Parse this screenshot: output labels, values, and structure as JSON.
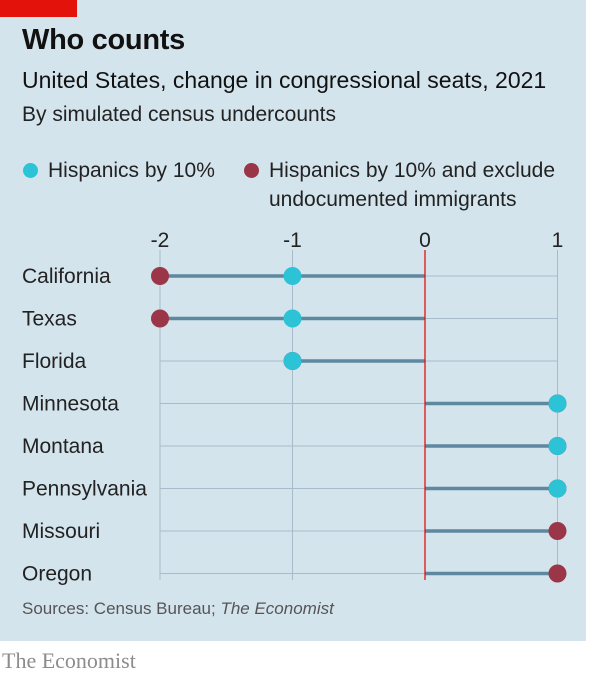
{
  "header": {
    "title": "Who counts",
    "subtitle": "United States, change in congressional seats, 2021",
    "subsubtitle": "By simulated census undercounts"
  },
  "legend": {
    "item1": "Hispanics by 10%",
    "item2_line1": "Hispanics by 10% and exclude",
    "item2_line2": "undocumented immigrants"
  },
  "footer": {
    "source_prefix": "Sources: Census Bureau; ",
    "source_italic": "The Economist",
    "brand": "The Economist"
  },
  "colors": {
    "background": "#d4e4ed",
    "accent_red": "#e3120b",
    "series1": "#2cc3d7",
    "series2": "#9b3548",
    "stem": "#5e87a0",
    "grid": "#a6bcca",
    "zero_line": "#e3120b"
  },
  "chart_data": {
    "type": "dot-plot",
    "title": "Who counts",
    "subtitle": "United States, change in congressional seats, 2021",
    "xlim": [
      -2,
      1
    ],
    "x_ticks": [
      -2,
      -1,
      0,
      1
    ],
    "categories": [
      "California",
      "Texas",
      "Florida",
      "Minnesota",
      "Montana",
      "Pennsylvania",
      "Missouri",
      "Oregon"
    ],
    "series": [
      {
        "name": "Hispanics by 10%",
        "values": [
          -1,
          -1,
          -1,
          1,
          1,
          1,
          0,
          0
        ]
      },
      {
        "name": "Hispanics by 10% and exclude undocumented immigrants",
        "values": [
          -2,
          -2,
          -1,
          1,
          1,
          1,
          1,
          1
        ]
      }
    ],
    "grid": true,
    "legend_position": "top"
  }
}
